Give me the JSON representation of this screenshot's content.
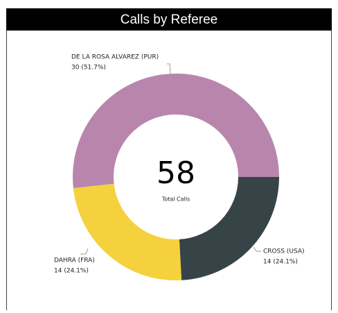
{
  "chart_data": {
    "type": "donut",
    "title": "Calls by Referee",
    "categories": [
      "CROSS (USA)",
      "DAHRA (FRA)",
      "DE LA ROSA ALVAREZ (PUR)"
    ],
    "values": [
      14,
      14,
      30
    ],
    "value_labels": [
      "14 (24.1%)",
      "14 (24.1%)",
      "30 (51.7%)"
    ],
    "colors": [
      "#374447",
      "#f5d13e",
      "#b886ad"
    ],
    "center_value": 58,
    "center_label": "Total Calls"
  }
}
